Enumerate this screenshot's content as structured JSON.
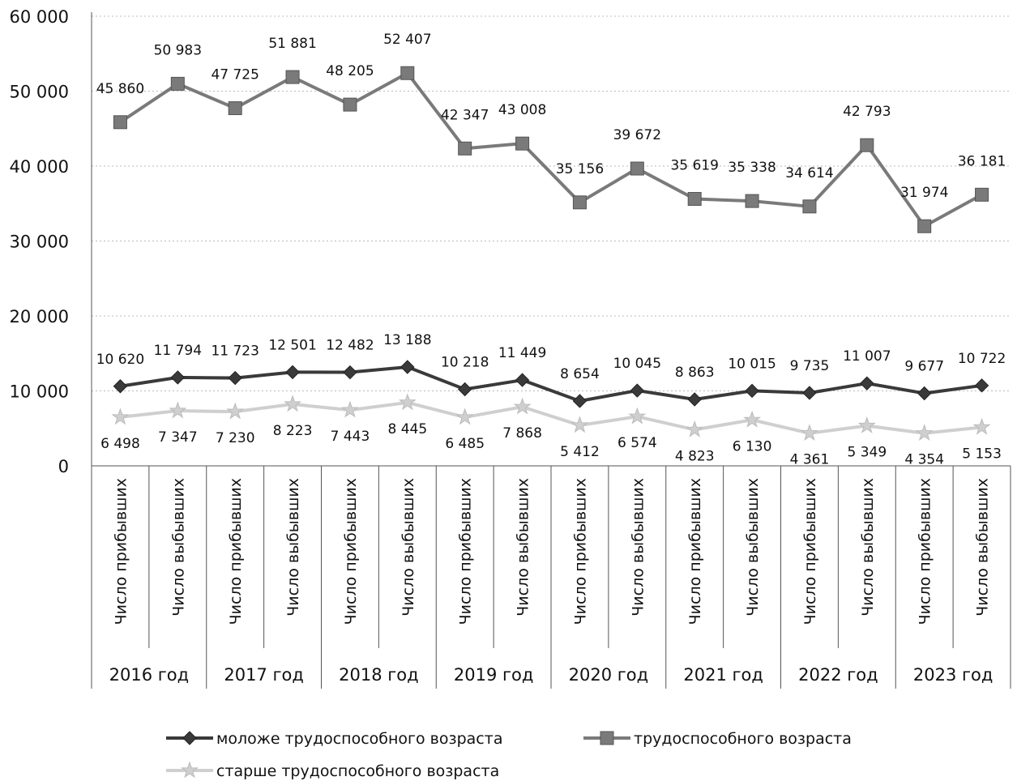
{
  "chart_data": {
    "type": "line",
    "title": "",
    "xlabel": "",
    "ylabel": "",
    "ylim": [
      0,
      60000
    ],
    "yticks": [
      0,
      10000,
      20000,
      30000,
      40000,
      50000,
      60000
    ],
    "ytick_labels": [
      "0",
      "10 000",
      "20 000",
      "30 000",
      "40 000",
      "50 000",
      "60 000"
    ],
    "grid": false,
    "legend_position": "bottom",
    "categories": [
      "Число прибывших",
      "Число выбывших",
      "Число прибывших",
      "Число выбывших",
      "Число прибывших",
      "Число выбывших",
      "Число прибывших",
      "Число выбывших",
      "Число прибывших",
      "Число выбывших",
      "Число прибывших",
      "Число выбывших",
      "Число прибывших",
      "Число выбывших",
      "Число прибывших",
      "Число выбывших"
    ],
    "groups": [
      "2016 год",
      "2017 год",
      "2018 год",
      "2019 год",
      "2020 год",
      "2021 год",
      "2022 год",
      "2023 год"
    ],
    "series": [
      {
        "name": "моложе трудоспособного возраста",
        "color": "#3a3a3a",
        "marker": "diamond",
        "values": [
          10620,
          11794,
          11723,
          12501,
          12482,
          13188,
          10218,
          11449,
          8654,
          10045,
          8863,
          10015,
          9735,
          11007,
          9677,
          10722
        ],
        "labels": [
          "10 620",
          "11 794",
          "11 723",
          "12 501",
          "12 482",
          "13 188",
          "10 218",
          "11 449",
          "8 654",
          "10 045",
          "8 863",
          "10 015",
          "9 735",
          "11 007",
          "9 677",
          "10 722"
        ]
      },
      {
        "name": "трудоспособного возраста",
        "color": "#7a7a7a",
        "marker": "square",
        "values": [
          45860,
          50983,
          47725,
          51881,
          48205,
          52407,
          42347,
          43008,
          35156,
          39672,
          35619,
          35338,
          34614,
          42793,
          31974,
          36181
        ],
        "labels": [
          "45 860",
          "50 983",
          "47 725",
          "51 881",
          "48 205",
          "52 407",
          "42 347",
          "43 008",
          "35 156",
          "39 672",
          "35 619",
          "35 338",
          "34 614",
          "42 793",
          "31 974",
          "36 181"
        ]
      },
      {
        "name": "старше трудоспособного возраста",
        "color": "#cfcfcf",
        "marker": "star",
        "values": [
          6498,
          7347,
          7230,
          8223,
          7443,
          8445,
          6485,
          7868,
          5412,
          6574,
          4823,
          6130,
          4361,
          5349,
          4354,
          5153
        ],
        "labels": [
          "6 498",
          "7 347",
          "7 230",
          "8 223",
          "7 443",
          "8 445",
          "6 485",
          "7 868",
          "5 412",
          "6 574",
          "4 823",
          "6 130",
          "4 361",
          "5 349",
          "4 354",
          "5 153"
        ]
      }
    ]
  }
}
